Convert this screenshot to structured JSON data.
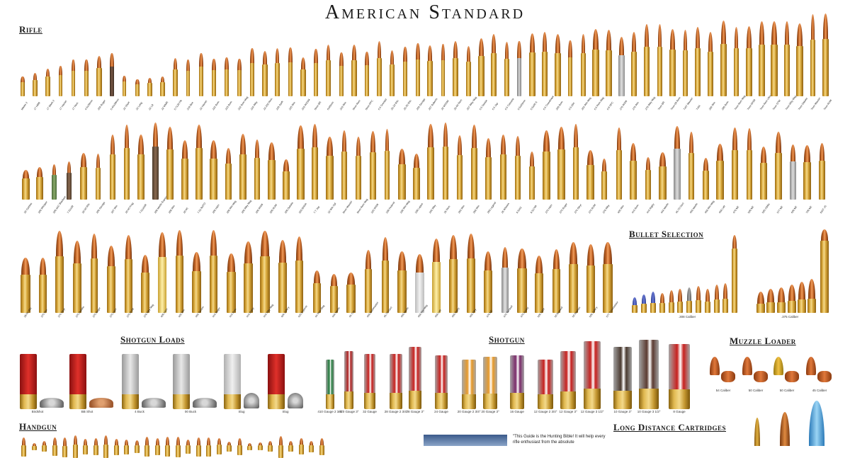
{
  "title": "American Standard",
  "sections": {
    "rifle": "Rifle",
    "bullet_selection": "Bullet Selection",
    "shotgun_loads": "Shotgun Loads",
    "shotgun": "Shotgun",
    "muzzle_loader": "Muzzle Loader",
    "handgun": "Handgun",
    "long_distance": "Long Distance Cartridges"
  },
  "rifle_row1_labels": [
    "Moore 2",
    "17 HMR",
    "17 Mach 2",
    "17 Hornet",
    "17 Rem",
    "4.6x30mm",
    "204 Ruger",
    "5.45x39mm",
    "22 Short",
    "22 Long",
    "22 LR",
    "22 WMR",
    "5.7x28 FN",
    "218 Bee",
    "22 Hornet",
    "222 Rem",
    "223 Rem",
    "222 Rem Mag",
    "224 Wby",
    "22-250 Rem",
    "220 Swift",
    "225 Win",
    "243 WSSM",
    "6mm BR",
    "6x45mm",
    "243 Win",
    "6mm Rem",
    "6mm PPC",
    "6.5 Grendel",
    "25-20 Win",
    "25-35 Win",
    "250 Savage",
    "257 Roberts",
    "25 WSSM",
    "25-06 Rem",
    "257 Wby Mag",
    "6.5 Swede",
    "6.5 Jap",
    "6.5 Carcano",
    "6.5x55mm",
    "6.5x68 S",
    "6.5 Creedmoor",
    "260 Rem",
    "6.5-284",
    "264 Win Mag",
    "6.5 Rem Mag",
    "6.8 SPC",
    "270 WSM",
    "270 Win",
    "270 Wby Mag",
    "7mm BR",
    "7mm-08 Rem",
    "7x57 Mauser",
    "7x64",
    "284 Win",
    "280 Rem",
    "7mm Rem Mag",
    "7mm WSM",
    "7mm Rem Ultra Mag",
    "7mm STW",
    "7mm Wby Mag",
    "7mm Dakota",
    "7mm Mauser",
    "7mm RUM"
  ],
  "rifle_row2_labels": [
    "30 Carbine",
    "300 Whisper",
    "300 AAC Blackout",
    "7.62x39",
    "30-30 Win",
    "300 Savage",
    "307 Win",
    "30-40 Krag",
    "7.62x54R",
    "308 Marlin Express",
    "308 Win",
    "30-06",
    "7.62 NATO",
    "300 H&H",
    "300 Win Mag",
    "300 Wby Mag",
    "300 WSM",
    "300 RUM",
    "300 Dakota",
    "303 British",
    "7.7 Jap",
    "32 Win Spl",
    "8mm Mauser",
    "8mm Rem Mag",
    "325 WSM",
    "338 Federal",
    "338 Win Mag",
    "338 Lapua",
    "340 Wby",
    "35 Rem",
    "356 Win",
    "358 Win",
    "350 Legend",
    "35 Whelen",
    "9.3x62",
    "9.3x74R",
    "375 H&H",
    "375 Ruger",
    "376 Steyr",
    "375 RUM",
    "378 Wby",
    "405 Win",
    "416 Rem",
    "416 Rigby",
    "444 Marlin",
    "45-70 Govt",
    "450 Marlin",
    "458 Win Mag",
    "458 Lott",
    "470 NE",
    "500 NE",
    "505 Gibbs",
    "577 NE",
    "600 NE",
    "700 NE",
    "8x57 JS"
  ],
  "rifle_row3_labels": [
    "38-55 Win",
    "375 Win",
    "376 Steyr",
    "375 Dakota",
    "375 Ruger",
    "375 H&H",
    "375 RUM",
    "378 Wby Mag",
    "400 H&H",
    "405 Win",
    "450 Tanzen",
    "416 Ruger",
    "416 Rem",
    "416 Rigby",
    "416 Wby Mag",
    "404 Jeffery",
    "425 Express",
    "44 Rem Mag",
    "444 Marlin",
    "45 Colt",
    "450 Bushmaster",
    "45-70 Govt",
    "450 Marlin",
    "458 Win Mag",
    "458 Lott",
    "450 Rigby",
    "460 Wby",
    "470 NE",
    "475 Turnbull",
    "475 Ackley",
    "500 S&W",
    "50 Beowulf",
    "50 Alaskan",
    "500 Jeffery",
    "577 Tyrannosaur"
  ],
  "bullet_selection_labels": [
    ".308 Caliber",
    ".375 Caliber"
  ],
  "shotgun_loads": [
    "Birdshot",
    "BB Shot",
    "4 Buck",
    "00 Buck",
    "Slug",
    "Slug"
  ],
  "shotgun_shells": [
    "410 Gauge 2 3/4\"",
    "410 Gauge 3\"",
    "32 Gauge",
    "28 Gauge 2 3/4\"",
    "28 Gauge 3\"",
    "24 Gauge",
    "20 Gauge 2 3/4\"",
    "20 Gauge 3\"",
    "16 Gauge",
    "12 Gauge 2 3/4\"",
    "12 Gauge 3\"",
    "12 Gauge 3 1/2\"",
    "10 Gauge 3\"",
    "10 Gauge 3 1/2\"",
    "8 Gauge"
  ],
  "muzzle_loader_labels": [
    "54 Caliber",
    "50 Caliber",
    "50 Caliber",
    "45 Caliber"
  ],
  "quote": "\"This Guide is the Hunting Bible! It will help every rifle enthusiast from the absolute",
  "colors": {
    "brass": "#d9a93c",
    "copper": "#c96a2a",
    "red_hull": "#c8201e",
    "green_hull": "#1f7a3a",
    "background": "#ffffff"
  }
}
